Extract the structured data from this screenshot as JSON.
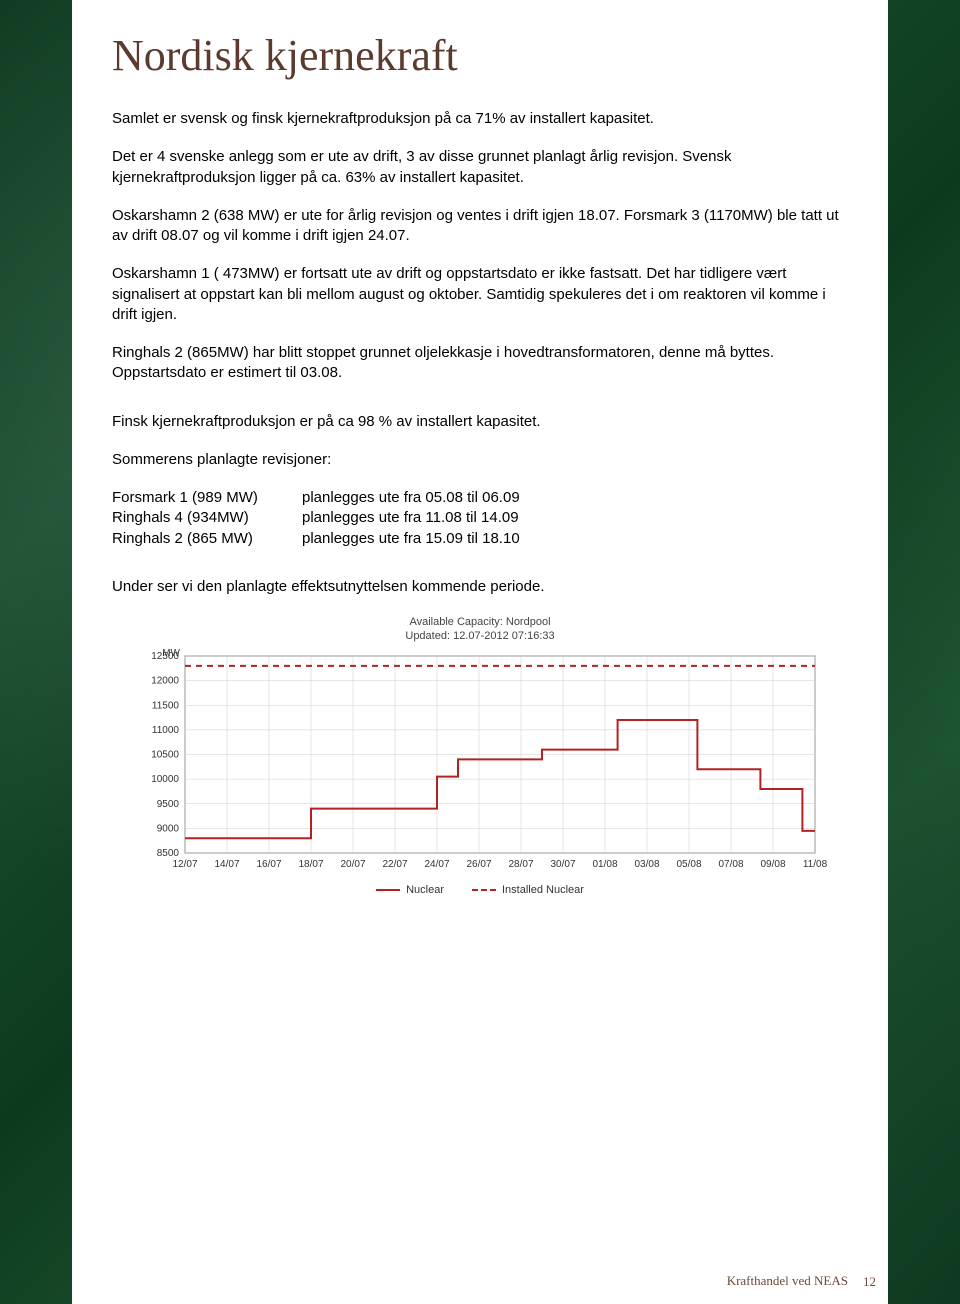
{
  "title": "Nordisk kjernekraft",
  "paragraphs": {
    "p1": "Samlet er svensk og finsk kjernekraftproduksjon på ca 71%  av installert kapasitet.",
    "p2": "Det er 4 svenske anlegg som er ute av drift, 3 av disse grunnet planlagt årlig revisjon. Svensk kjernekraftproduksjon ligger på ca.  63% av installert kapasitet.",
    "p3": "Oskarshamn 2 (638 MW) er ute for årlig revisjon og ventes i drift igjen 18.07. Forsmark 3 (1170MW)  ble tatt ut av drift 08.07 og vil komme i drift igjen 24.07.",
    "p4": "Oskarshamn 1 ( 473MW)  er fortsatt ute av drift og oppstartsdato er ikke fastsatt. Det har tidligere vært signalisert at oppstart kan bli mellom august og oktober. Samtidig spekuleres det i om reaktoren vil komme i drift igjen.",
    "p5": "Ringhals 2 (865MW) har blitt stoppet grunnet oljelekkasje i hovedtransformatoren, denne må byttes. Oppstartsdato er estimert til 03.08.",
    "p6": "Finsk kjernekraftproduksjon  er på ca 98 % av installert kapasitet.",
    "p7": "Sommerens planlagte revisjoner:",
    "p8": "Under ser vi den planlagte effektsutnyttelsen  kommende periode."
  },
  "revisions": [
    {
      "name": "Forsmark 1 (989 MW)",
      "plan": "planlegges ute fra 05.08 til 06.09"
    },
    {
      "name": "Ringhals 4 (934MW)",
      "plan": "planlegges ute fra 11.08 til 14.09"
    },
    {
      "name": "Ringhals 2 (865 MW)",
      "plan": "planlegges ute fra 15.09 til 18.10"
    }
  ],
  "chart": {
    "type": "line-step",
    "title_line1": "Available Capacity: Nordpool",
    "title_line2": "Updated: 12.07-2012 07:16:33",
    "y_label": "MW",
    "ylim": [
      8500,
      12500
    ],
    "ytick_step": 500,
    "y_ticks": [
      8500,
      9000,
      9500,
      10000,
      10500,
      11000,
      11500,
      12000,
      12500
    ],
    "x_labels": [
      "12/07",
      "14/07",
      "16/07",
      "18/07",
      "20/07",
      "22/07",
      "24/07",
      "26/07",
      "28/07",
      "30/07",
      "01/08",
      "03/08",
      "05/08",
      "07/08",
      "09/08",
      "11/08"
    ],
    "installed_value": 12300,
    "installed_color": "#b22222",
    "nuclear_color": "#b22222",
    "grid_color": "#cccccc",
    "axis_color": "#666666",
    "background_color": "#ffffff",
    "label_fontsize": 10,
    "nuclear_points": [
      {
        "x": 0,
        "y": 8800
      },
      {
        "x": 1,
        "y": 8800
      },
      {
        "x": 3,
        "y": 9400
      },
      {
        "x": 4,
        "y": 9400
      },
      {
        "x": 6,
        "y": 10050
      },
      {
        "x": 6.5,
        "y": 10400
      },
      {
        "x": 8,
        "y": 10400
      },
      {
        "x": 8.5,
        "y": 10600
      },
      {
        "x": 10,
        "y": 10600
      },
      {
        "x": 10.3,
        "y": 11200
      },
      {
        "x": 12,
        "y": 11200
      },
      {
        "x": 12.2,
        "y": 10200
      },
      {
        "x": 13.5,
        "y": 10200
      },
      {
        "x": 13.7,
        "y": 9800
      },
      {
        "x": 14.5,
        "y": 9800
      },
      {
        "x": 14.7,
        "y": 8950
      },
      {
        "x": 15,
        "y": 8950
      }
    ],
    "legend": {
      "solid": "Nuclear",
      "dashed": "Installed Nuclear"
    }
  },
  "footer": "Krafthandel ved NEAS",
  "page_number": "12"
}
